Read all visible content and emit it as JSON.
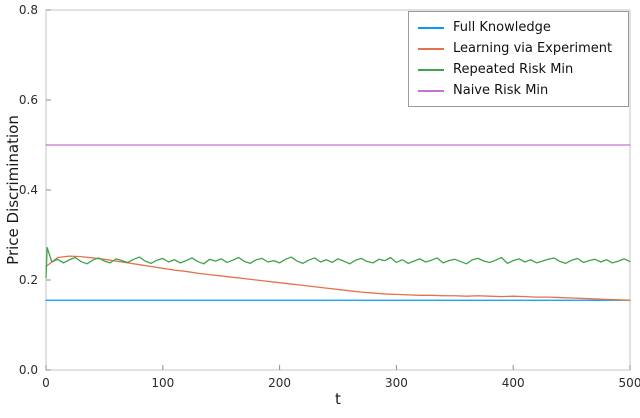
{
  "chart_data": {
    "type": "line",
    "title": "",
    "xlabel": "t",
    "ylabel": "Price Discrimination",
    "xlim": [
      0,
      500
    ],
    "ylim": [
      0.0,
      0.8
    ],
    "grid": false,
    "xticks": {
      "values": [
        0,
        100,
        200,
        300,
        400,
        500
      ],
      "labels": [
        "0",
        "100",
        "200",
        "300",
        "400",
        "500"
      ]
    },
    "yticks": {
      "values": [
        0.0,
        0.2,
        0.4,
        0.6,
        0.8
      ],
      "labels": [
        "0.0",
        "0.2",
        "0.4",
        "0.6",
        "0.8"
      ]
    },
    "legend": {
      "position": "top-right"
    },
    "series": [
      {
        "name": "Full Knowledge",
        "color": "#009AFA",
        "x": [
          0,
          500
        ],
        "y": [
          0.155,
          0.155
        ]
      },
      {
        "name": "Learning via Experiment",
        "color": "#E4724B",
        "x": [
          0,
          10,
          20,
          30,
          40,
          50,
          60,
          70,
          80,
          90,
          100,
          110,
          120,
          130,
          140,
          150,
          160,
          170,
          180,
          190,
          200,
          210,
          220,
          230,
          240,
          250,
          260,
          270,
          280,
          290,
          300,
          310,
          320,
          330,
          340,
          350,
          360,
          370,
          380,
          390,
          400,
          410,
          420,
          430,
          440,
          450,
          460,
          470,
          480,
          490,
          500
        ],
        "y": [
          0.23,
          0.25,
          0.253,
          0.252,
          0.249,
          0.246,
          0.242,
          0.238,
          0.234,
          0.23,
          0.226,
          0.222,
          0.219,
          0.215,
          0.212,
          0.209,
          0.206,
          0.203,
          0.2,
          0.197,
          0.194,
          0.191,
          0.188,
          0.185,
          0.182,
          0.179,
          0.176,
          0.173,
          0.171,
          0.169,
          0.168,
          0.167,
          0.166,
          0.166,
          0.165,
          0.165,
          0.164,
          0.165,
          0.164,
          0.163,
          0.164,
          0.163,
          0.162,
          0.162,
          0.161,
          0.16,
          0.159,
          0.158,
          0.157,
          0.156,
          0.155
        ]
      },
      {
        "name": "Repeated Risk Min",
        "color": "#3DA44D",
        "x": [
          0,
          1,
          5,
          10,
          15,
          20,
          25,
          30,
          35,
          40,
          45,
          50,
          55,
          60,
          65,
          70,
          75,
          80,
          85,
          90,
          95,
          100,
          105,
          110,
          115,
          120,
          125,
          130,
          135,
          140,
          145,
          150,
          155,
          160,
          165,
          170,
          175,
          180,
          185,
          190,
          195,
          200,
          205,
          210,
          215,
          220,
          225,
          230,
          235,
          240,
          245,
          250,
          255,
          260,
          265,
          270,
          275,
          280,
          285,
          290,
          295,
          300,
          305,
          310,
          315,
          320,
          325,
          330,
          335,
          340,
          345,
          350,
          355,
          360,
          365,
          370,
          375,
          380,
          385,
          390,
          395,
          400,
          405,
          410,
          415,
          420,
          425,
          430,
          435,
          440,
          445,
          450,
          455,
          460,
          465,
          470,
          475,
          480,
          485,
          490,
          495,
          500
        ],
        "y": [
          0.205,
          0.272,
          0.24,
          0.246,
          0.238,
          0.245,
          0.25,
          0.241,
          0.236,
          0.244,
          0.249,
          0.242,
          0.238,
          0.247,
          0.243,
          0.239,
          0.246,
          0.251,
          0.242,
          0.237,
          0.244,
          0.248,
          0.24,
          0.245,
          0.238,
          0.243,
          0.249,
          0.241,
          0.236,
          0.246,
          0.242,
          0.247,
          0.239,
          0.244,
          0.25,
          0.241,
          0.237,
          0.245,
          0.248,
          0.24,
          0.243,
          0.238,
          0.246,
          0.251,
          0.242,
          0.237,
          0.244,
          0.249,
          0.24,
          0.245,
          0.239,
          0.247,
          0.242,
          0.236,
          0.244,
          0.248,
          0.241,
          0.238,
          0.246,
          0.243,
          0.25,
          0.239,
          0.245,
          0.237,
          0.242,
          0.247,
          0.24,
          0.244,
          0.249,
          0.238,
          0.243,
          0.246,
          0.241,
          0.236,
          0.245,
          0.248,
          0.242,
          0.239,
          0.244,
          0.25,
          0.237,
          0.243,
          0.247,
          0.24,
          0.245,
          0.238,
          0.242,
          0.246,
          0.249,
          0.241,
          0.237,
          0.244,
          0.248,
          0.239,
          0.243,
          0.246,
          0.24,
          0.245,
          0.238,
          0.242,
          0.247,
          0.241
        ]
      },
      {
        "name": "Naive Risk Min",
        "color": "#C371D2",
        "x": [
          0,
          500
        ],
        "y": [
          0.5,
          0.5
        ]
      }
    ]
  },
  "style": {
    "background": "#ffffff",
    "frame_color": "#c6c6c6",
    "tick_color": "#8e8e8e",
    "tick_label_color": "#2b2b2b",
    "legend_border_color": "#9a9a9a",
    "line_width": 1.3
  }
}
